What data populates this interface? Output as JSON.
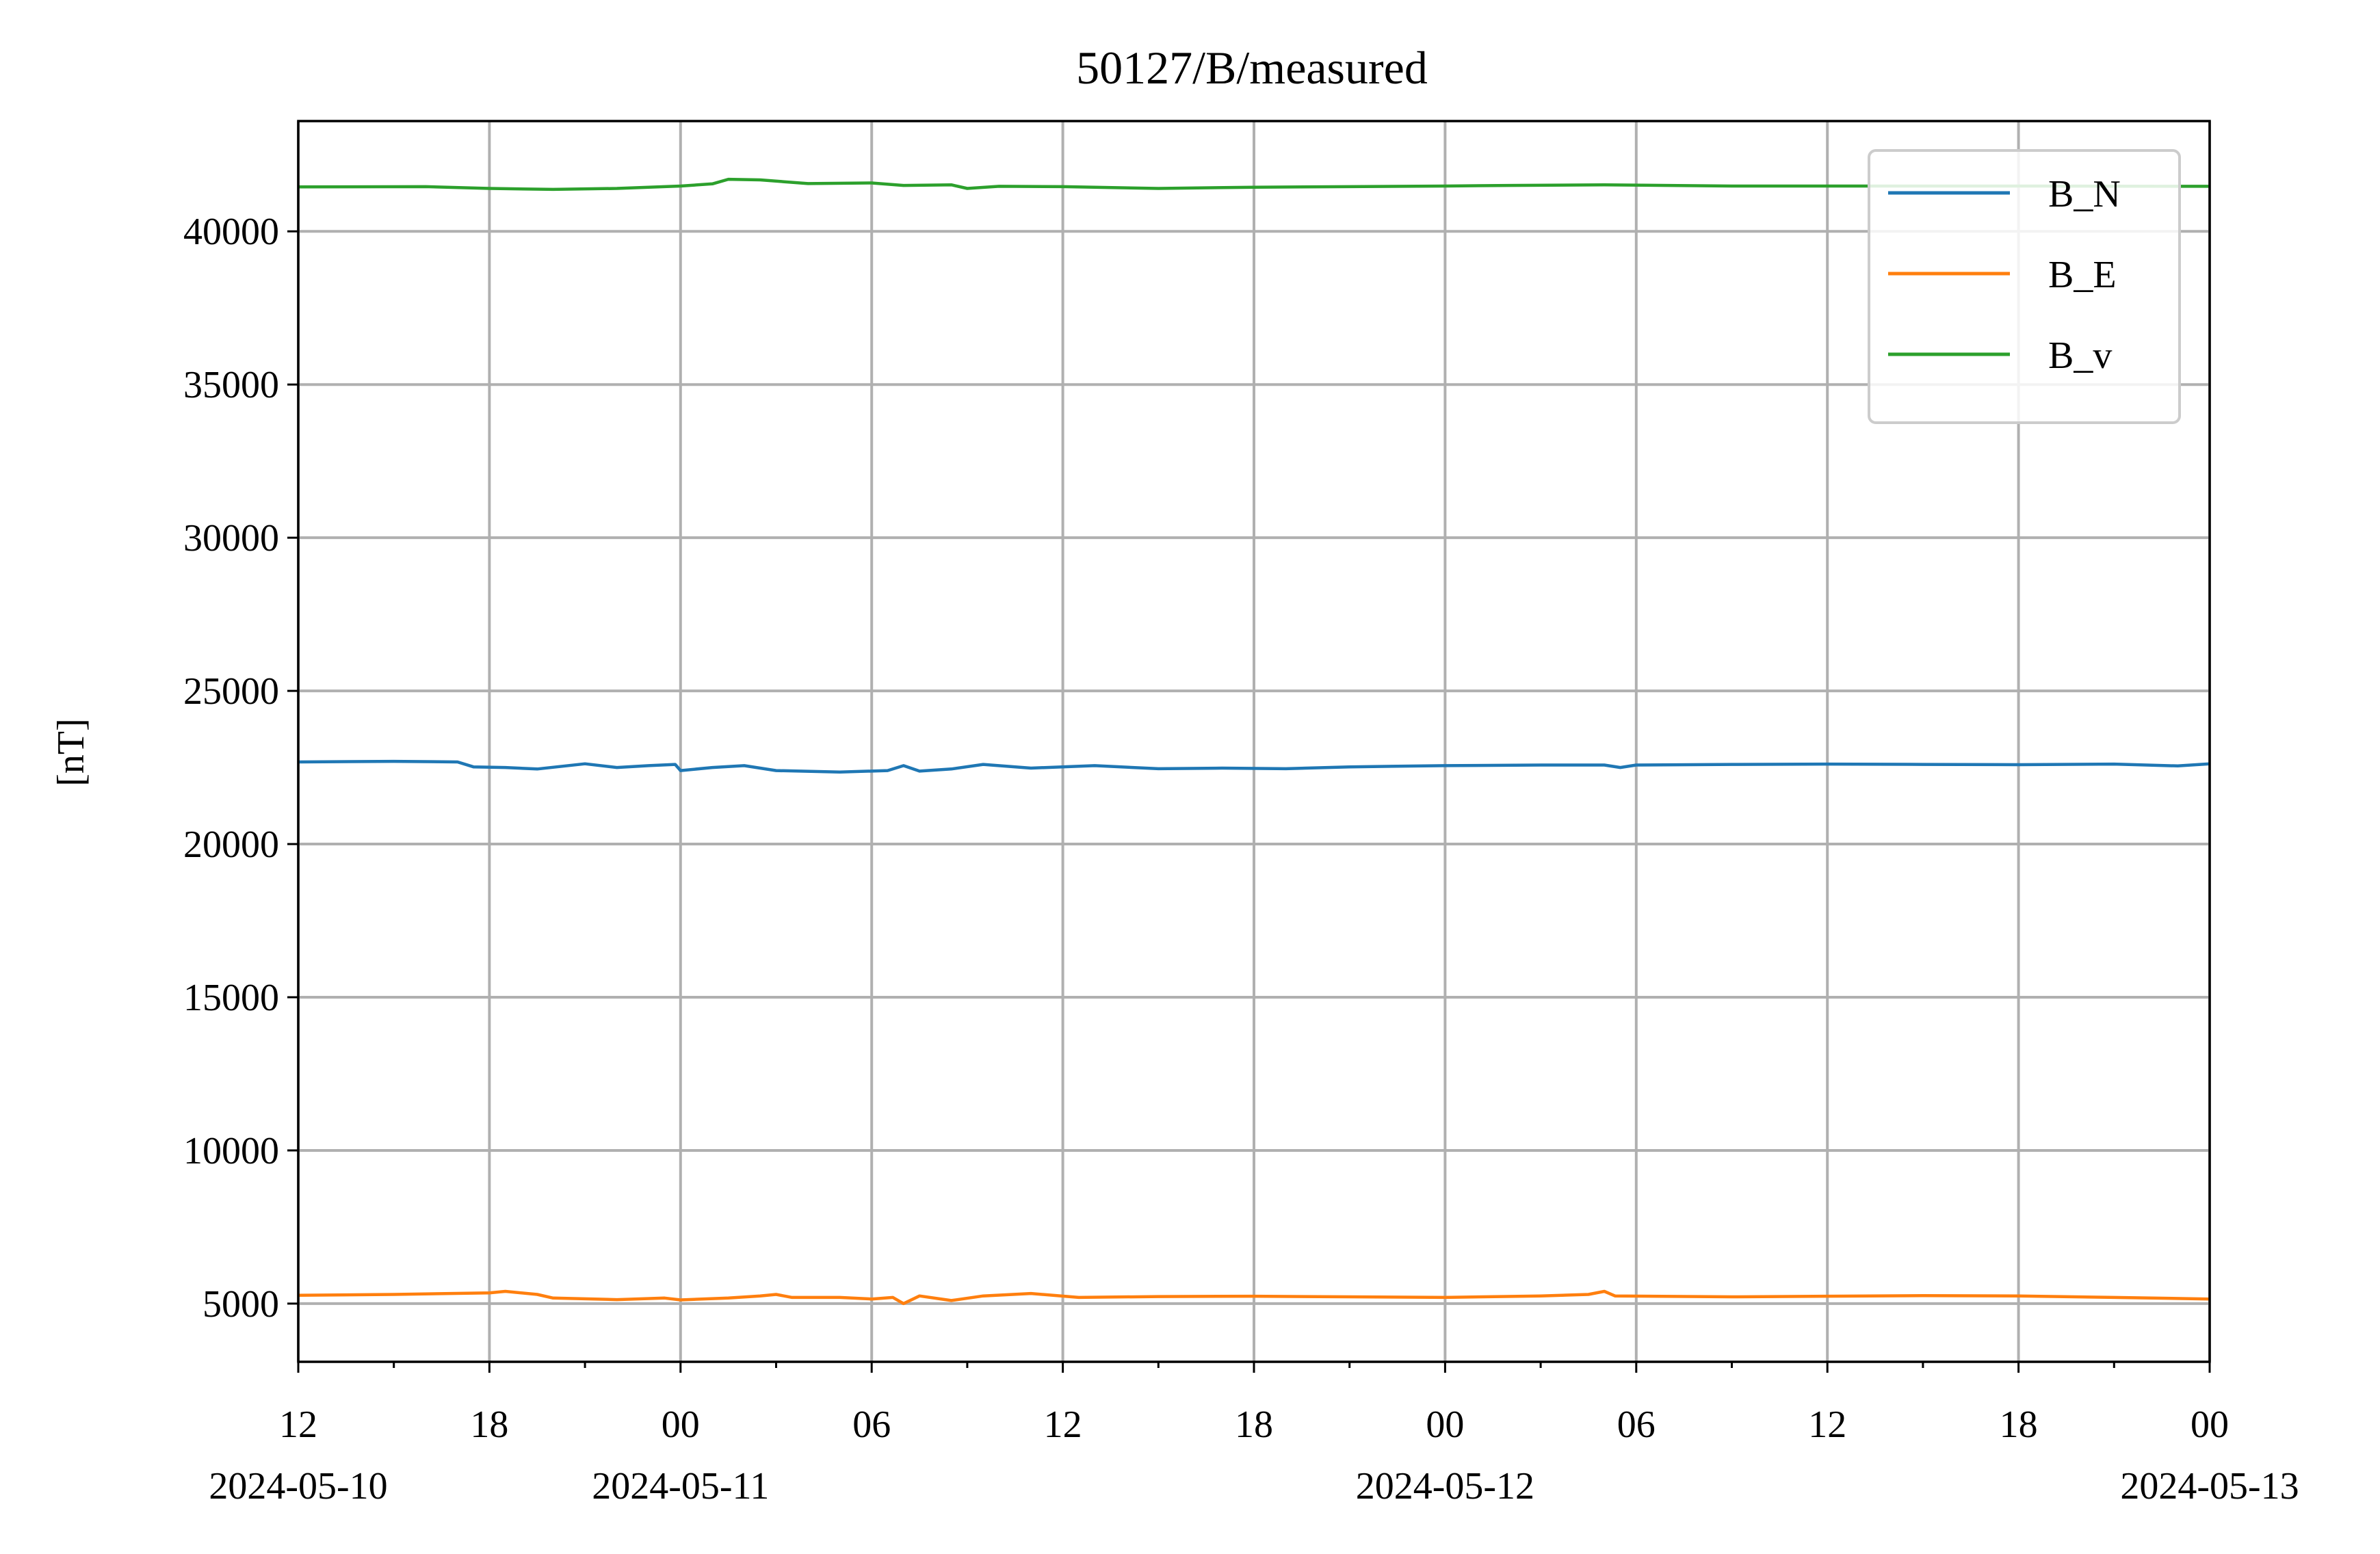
{
  "chart_data": {
    "type": "line",
    "title": "50127/B/measured",
    "xlabel": "",
    "ylabel": "[nT]",
    "x_range": [
      "2024-05-10T12:00",
      "2024-05-13T00:00"
    ],
    "ylim": [
      3100,
      43600
    ],
    "grid": true,
    "legend_position": "top-right",
    "x_ticks": [
      {
        "time": "2024-05-10T12:00",
        "label": "12",
        "date_label": "2024-05-10"
      },
      {
        "time": "2024-05-10T18:00",
        "label": "18",
        "date_label": ""
      },
      {
        "time": "2024-05-11T00:00",
        "label": "00",
        "date_label": "2024-05-11"
      },
      {
        "time": "2024-05-11T06:00",
        "label": "06",
        "date_label": ""
      },
      {
        "time": "2024-05-11T12:00",
        "label": "12",
        "date_label": ""
      },
      {
        "time": "2024-05-11T18:00",
        "label": "18",
        "date_label": ""
      },
      {
        "time": "2024-05-12T00:00",
        "label": "00",
        "date_label": "2024-05-12"
      },
      {
        "time": "2024-05-12T06:00",
        "label": "06",
        "date_label": ""
      },
      {
        "time": "2024-05-12T12:00",
        "label": "12",
        "date_label": ""
      },
      {
        "time": "2024-05-12T18:00",
        "label": "18",
        "date_label": ""
      },
      {
        "time": "2024-05-13T00:00",
        "label": "00",
        "date_label": "2024-05-13"
      }
    ],
    "x_minor_ticks": [
      "2024-05-10T15:00",
      "2024-05-10T21:00",
      "2024-05-11T03:00",
      "2024-05-11T09:00",
      "2024-05-11T15:00",
      "2024-05-11T21:00",
      "2024-05-12T03:00",
      "2024-05-12T09:00",
      "2024-05-12T15:00",
      "2024-05-12T21:00"
    ],
    "y_ticks": [
      5000,
      10000,
      15000,
      20000,
      25000,
      30000,
      35000,
      40000
    ],
    "series": [
      {
        "name": "B_N",
        "color": "#1f77b4",
        "points": [
          [
            "2024-05-10T12:00",
            22680
          ],
          [
            "2024-05-10T15:00",
            22700
          ],
          [
            "2024-05-10T17:00",
            22680
          ],
          [
            "2024-05-10T17:30",
            22520
          ],
          [
            "2024-05-10T18:30",
            22500
          ],
          [
            "2024-05-10T19:30",
            22450
          ],
          [
            "2024-05-10T21:00",
            22620
          ],
          [
            "2024-05-10T22:00",
            22500
          ],
          [
            "2024-05-10T23:00",
            22560
          ],
          [
            "2024-05-10T23:50",
            22600
          ],
          [
            "2024-05-11T00:00",
            22400
          ],
          [
            "2024-05-11T01:00",
            22500
          ],
          [
            "2024-05-11T02:00",
            22560
          ],
          [
            "2024-05-11T03:00",
            22400
          ],
          [
            "2024-05-11T05:00",
            22350
          ],
          [
            "2024-05-11T06:30",
            22400
          ],
          [
            "2024-05-11T07:00",
            22560
          ],
          [
            "2024-05-11T07:30",
            22380
          ],
          [
            "2024-05-11T08:30",
            22450
          ],
          [
            "2024-05-11T09:30",
            22600
          ],
          [
            "2024-05-11T11:00",
            22480
          ],
          [
            "2024-05-11T13:00",
            22560
          ],
          [
            "2024-05-11T15:00",
            22460
          ],
          [
            "2024-05-11T17:00",
            22480
          ],
          [
            "2024-05-11T19:00",
            22460
          ],
          [
            "2024-05-11T21:00",
            22520
          ],
          [
            "2024-05-12T00:00",
            22560
          ],
          [
            "2024-05-12T03:00",
            22580
          ],
          [
            "2024-05-12T05:00",
            22580
          ],
          [
            "2024-05-12T05:30",
            22500
          ],
          [
            "2024-05-12T06:00",
            22580
          ],
          [
            "2024-05-12T09:00",
            22600
          ],
          [
            "2024-05-12T12:00",
            22610
          ],
          [
            "2024-05-12T15:00",
            22600
          ],
          [
            "2024-05-12T18:00",
            22590
          ],
          [
            "2024-05-12T21:00",
            22610
          ],
          [
            "2024-05-12T23:00",
            22550
          ],
          [
            "2024-05-13T00:00",
            22620
          ]
        ]
      },
      {
        "name": "B_E",
        "color": "#ff7f0e",
        "points": [
          [
            "2024-05-10T12:00",
            5270
          ],
          [
            "2024-05-10T15:00",
            5300
          ],
          [
            "2024-05-10T18:00",
            5350
          ],
          [
            "2024-05-10T18:30",
            5400
          ],
          [
            "2024-05-10T19:30",
            5300
          ],
          [
            "2024-05-10T20:00",
            5180
          ],
          [
            "2024-05-10T22:00",
            5130
          ],
          [
            "2024-05-10T23:30",
            5180
          ],
          [
            "2024-05-11T00:00",
            5120
          ],
          [
            "2024-05-11T01:30",
            5180
          ],
          [
            "2024-05-11T02:30",
            5250
          ],
          [
            "2024-05-11T03:00",
            5300
          ],
          [
            "2024-05-11T03:30",
            5200
          ],
          [
            "2024-05-11T05:00",
            5200
          ],
          [
            "2024-05-11T06:00",
            5150
          ],
          [
            "2024-05-11T06:40",
            5200
          ],
          [
            "2024-05-11T07:00",
            5000
          ],
          [
            "2024-05-11T07:30",
            5250
          ],
          [
            "2024-05-11T08:30",
            5100
          ],
          [
            "2024-05-11T09:30",
            5250
          ],
          [
            "2024-05-11T11:00",
            5330
          ],
          [
            "2024-05-11T12:30",
            5200
          ],
          [
            "2024-05-11T15:00",
            5230
          ],
          [
            "2024-05-11T18:00",
            5240
          ],
          [
            "2024-05-11T21:00",
            5220
          ],
          [
            "2024-05-12T00:00",
            5200
          ],
          [
            "2024-05-12T03:00",
            5250
          ],
          [
            "2024-05-12T04:30",
            5300
          ],
          [
            "2024-05-12T05:00",
            5400
          ],
          [
            "2024-05-12T05:20",
            5250
          ],
          [
            "2024-05-12T09:00",
            5220
          ],
          [
            "2024-05-12T12:00",
            5240
          ],
          [
            "2024-05-12T15:00",
            5260
          ],
          [
            "2024-05-12T18:00",
            5250
          ],
          [
            "2024-05-12T21:00",
            5200
          ],
          [
            "2024-05-13T00:00",
            5150
          ]
        ]
      },
      {
        "name": "B_v",
        "color": "#2ca02c",
        "points": [
          [
            "2024-05-10T12:00",
            41450
          ],
          [
            "2024-05-10T16:00",
            41460
          ],
          [
            "2024-05-10T18:00",
            41400
          ],
          [
            "2024-05-10T20:00",
            41370
          ],
          [
            "2024-05-10T22:00",
            41400
          ],
          [
            "2024-05-11T00:00",
            41480
          ],
          [
            "2024-05-11T01:00",
            41550
          ],
          [
            "2024-05-11T01:30",
            41700
          ],
          [
            "2024-05-11T02:30",
            41680
          ],
          [
            "2024-05-11T04:00",
            41560
          ],
          [
            "2024-05-11T06:00",
            41580
          ],
          [
            "2024-05-11T07:00",
            41500
          ],
          [
            "2024-05-11T08:30",
            41520
          ],
          [
            "2024-05-11T09:00",
            41400
          ],
          [
            "2024-05-11T10:00",
            41470
          ],
          [
            "2024-05-11T12:00",
            41460
          ],
          [
            "2024-05-11T15:00",
            41400
          ],
          [
            "2024-05-11T18:00",
            41440
          ],
          [
            "2024-05-11T21:00",
            41460
          ],
          [
            "2024-05-12T00:00",
            41480
          ],
          [
            "2024-05-12T02:00",
            41500
          ],
          [
            "2024-05-12T05:00",
            41520
          ],
          [
            "2024-05-12T09:00",
            41480
          ],
          [
            "2024-05-12T12:00",
            41480
          ],
          [
            "2024-05-12T18:00",
            41480
          ],
          [
            "2024-05-13T00:00",
            41470
          ]
        ]
      }
    ]
  }
}
